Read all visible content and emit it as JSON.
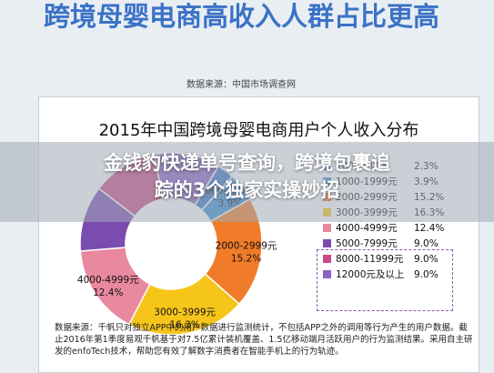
{
  "headline": "跨境母婴电商高收入人群占比更高",
  "source_top": "数据来源：中国市场调查网",
  "banner": {
    "line1": "金钱豹快递单号查询，跨境包裹追",
    "line2": "踪的3个独家实操妙招"
  },
  "footnote": "数据来源：千帆只对独立APP中的用户数据进行监测统计，不包括APP之外的调用等行为产生的用户数据。截止2016年第1季度易观千帆基于对7.5亿累计装机覆盖、1.5亿移动端月活跃用户的行为监测结果。采用自主研发的enfoTech技术，帮助您有效了解数字消费者在智能手机上的行为轨迹。",
  "chart_data": {
    "type": "pie",
    "title": "2015年中国跨境母婴电商用户个人收入分布",
    "categories": [
      "1000元以下",
      "1000-1999元",
      "2000-2999元",
      "3000-3999元",
      "4000-4999元",
      "5000-7999元",
      "8000-11999元",
      "12000元及以上"
    ],
    "values": [
      2.3,
      3.9,
      15.2,
      16.3,
      12.4,
      9.0,
      9.0,
      9.0
    ],
    "value_labels": [
      "",
      "3.9%",
      "15.2%",
      "16.3%",
      "12.4%",
      "",
      "",
      ""
    ],
    "legend": [
      {
        "label": "1000元以下",
        "value": "2.3%"
      },
      {
        "label": "1000-1999元",
        "value": "3.9%"
      },
      {
        "label": "2000-2999元",
        "value": "15.2%"
      },
      {
        "label": "3000-3999元",
        "value": "16.3%"
      },
      {
        "label": "4000-4999元",
        "value": "12.4%"
      },
      {
        "label": "5000-7999元",
        "value": "9.0%"
      },
      {
        "label": "8000-11999元",
        "value": "9.0%"
      },
      {
        "label": "12000元及以上",
        "value": "9.0%"
      }
    ],
    "colors": [
      "#3c74c9",
      "#3a8fd6",
      "#f07b28",
      "#f6c51a",
      "#e8899f",
      "#7a4cb0",
      "#c94a86",
      "#8c62c4"
    ],
    "legend_placement": "right"
  }
}
